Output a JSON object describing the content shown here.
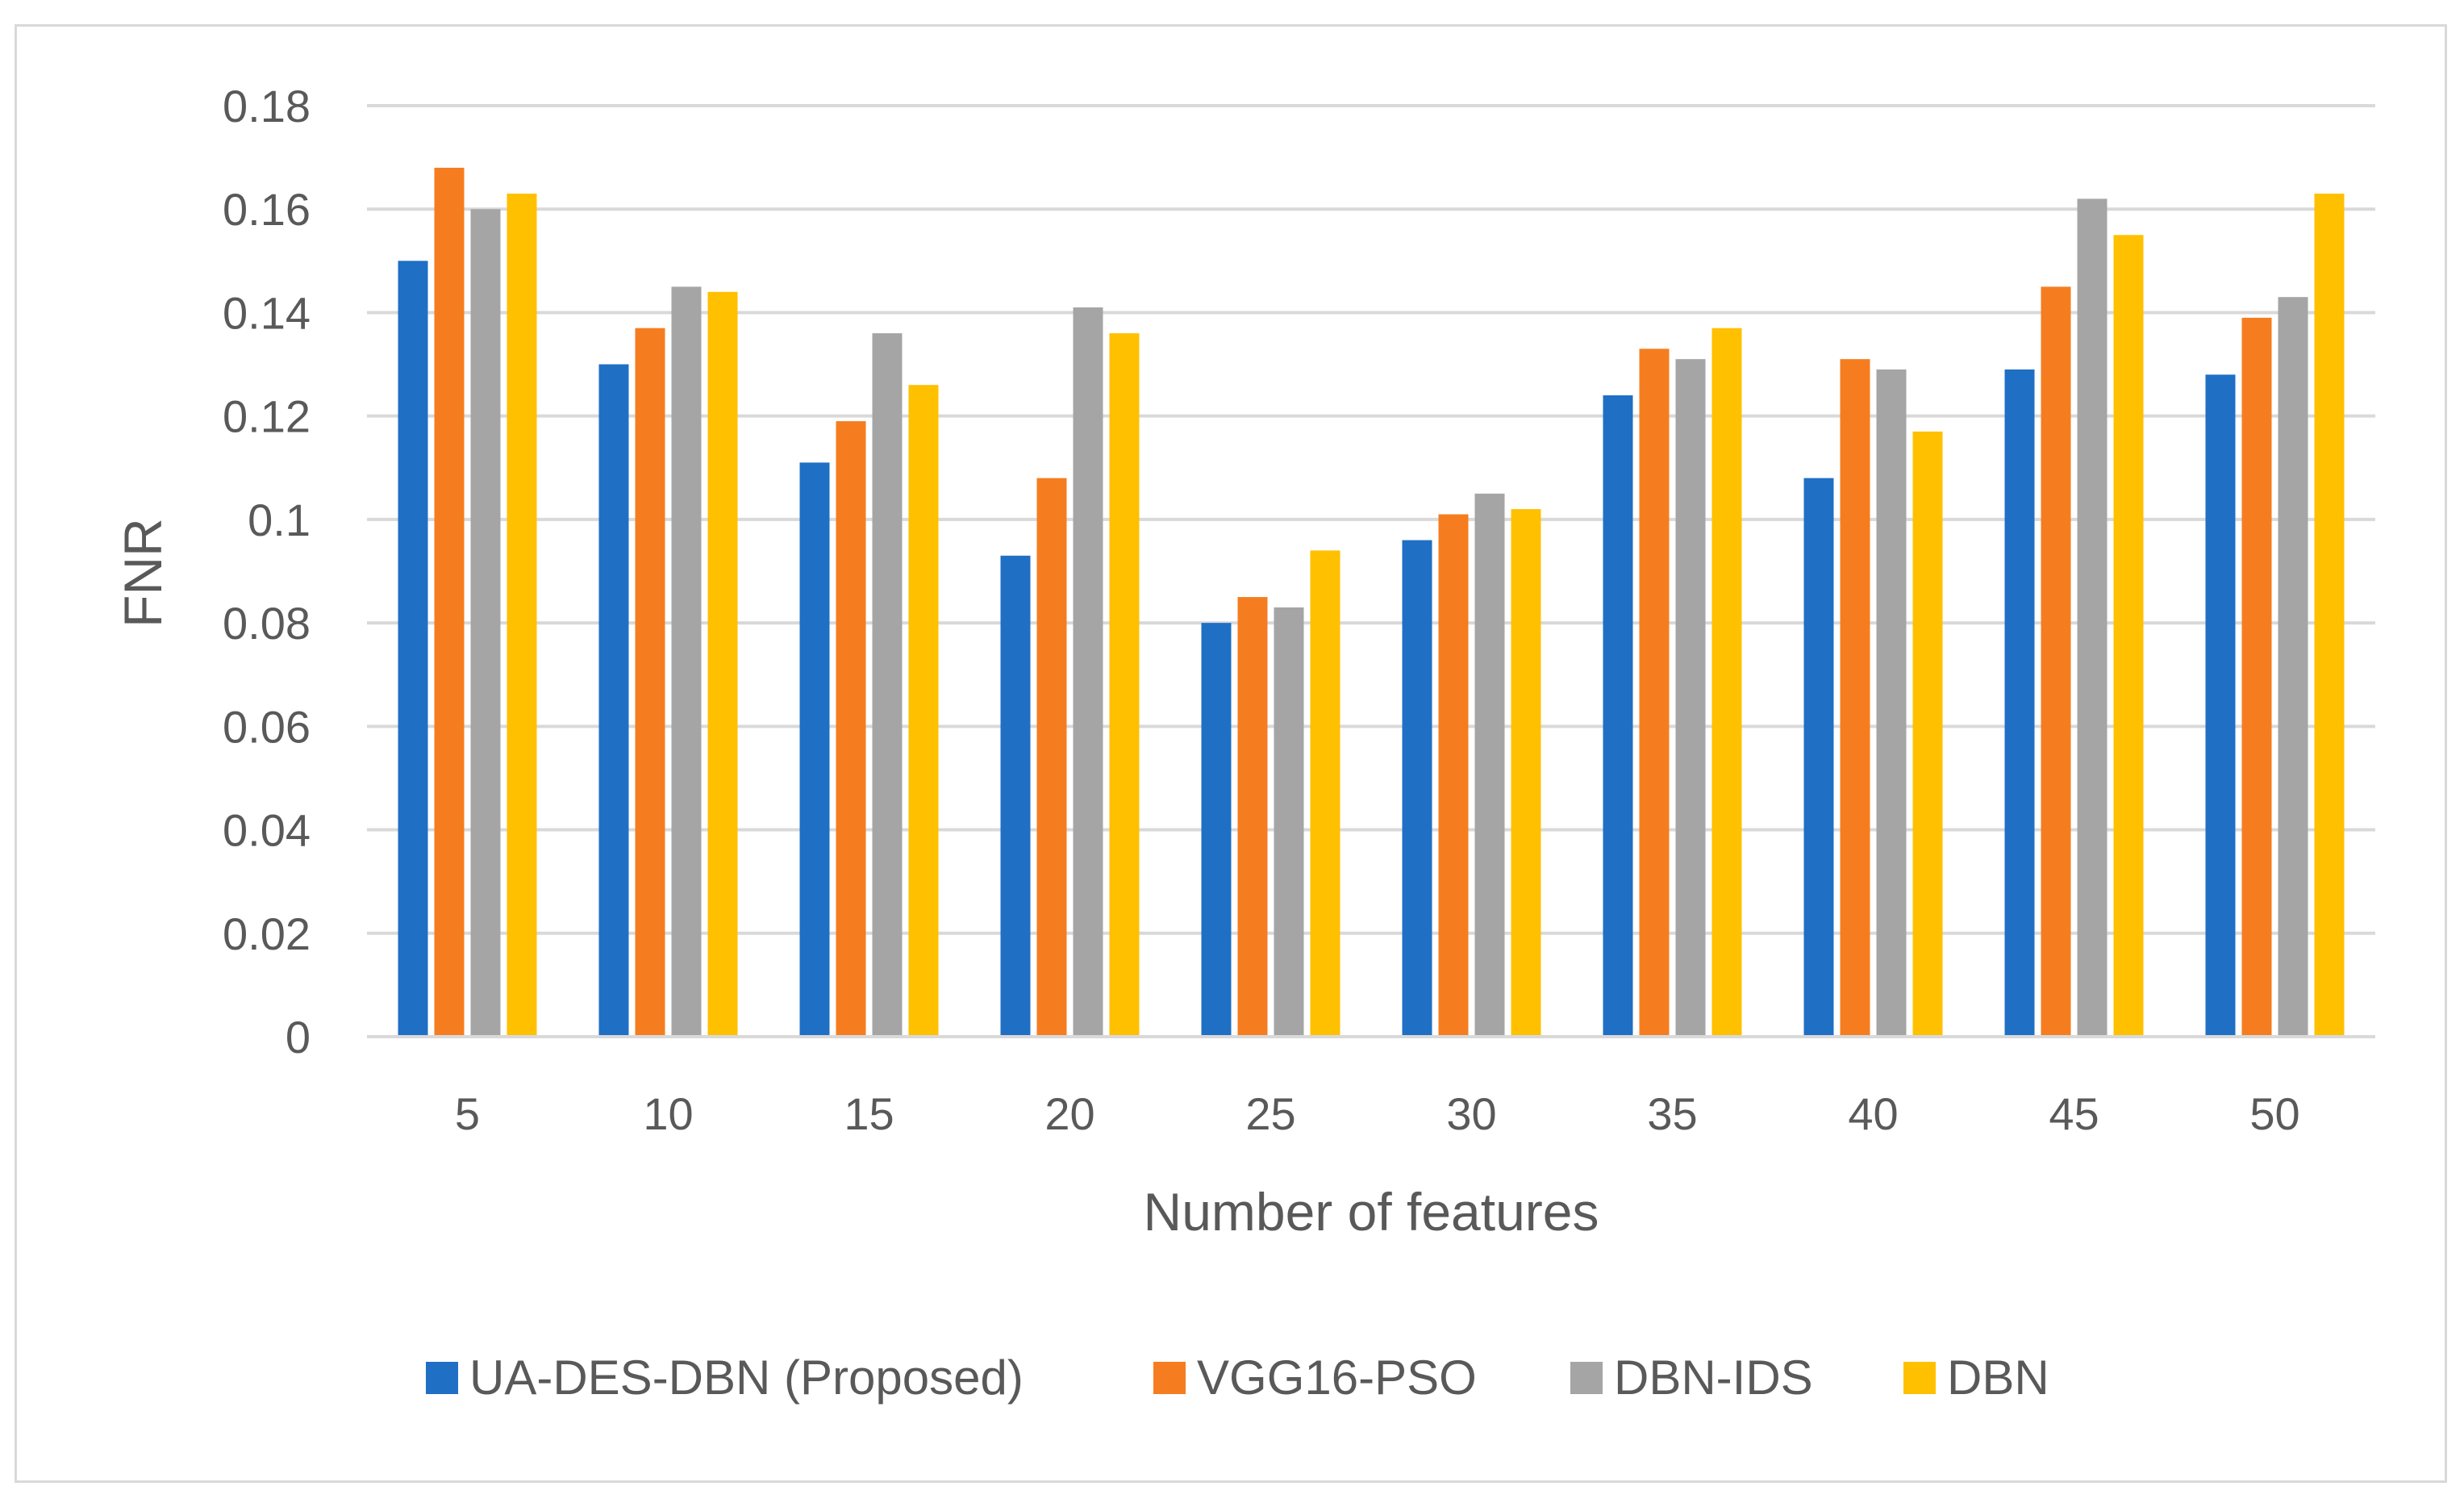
{
  "chart_data": {
    "type": "bar",
    "title": "",
    "xlabel": "Number of features",
    "ylabel": "FNR",
    "ylim": [
      0,
      0.18
    ],
    "yticks": [
      "0",
      "0.02",
      "0.04",
      "0.06",
      "0.08",
      "0.1",
      "0.12",
      "0.14",
      "0.16",
      "0.18"
    ],
    "categories": [
      "5",
      "10",
      "15",
      "20",
      "25",
      "30",
      "35",
      "40",
      "45",
      "50"
    ],
    "grid": true,
    "legend_position": "bottom",
    "series": [
      {
        "name": "UA-DES-DBN (Proposed)",
        "color": "#1f6fc5",
        "values": [
          0.15,
          0.13,
          0.111,
          0.093,
          0.08,
          0.096,
          0.124,
          0.108,
          0.129,
          0.128
        ]
      },
      {
        "name": "VGG16-PSO",
        "color": "#f57d20",
        "values": [
          0.168,
          0.137,
          0.119,
          0.108,
          0.085,
          0.101,
          0.133,
          0.131,
          0.145,
          0.139
        ]
      },
      {
        "name": "DBN-IDS",
        "color": "#a5a5a5",
        "values": [
          0.16,
          0.145,
          0.136,
          0.141,
          0.083,
          0.105,
          0.131,
          0.129,
          0.162,
          0.143
        ]
      },
      {
        "name": "DBN",
        "color": "#ffc000",
        "values": [
          0.163,
          0.144,
          0.126,
          0.136,
          0.094,
          0.102,
          0.137,
          0.117,
          0.155,
          0.163
        ]
      }
    ]
  }
}
